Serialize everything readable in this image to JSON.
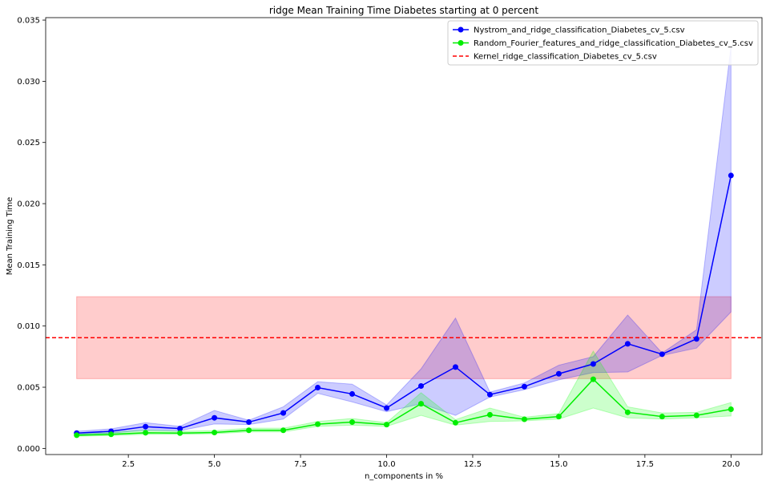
{
  "chart_data": {
    "type": "line",
    "title": "ridge Mean Training Time Diabetes starting at 0 percent",
    "xlabel": "n_components in %",
    "ylabel": "Mean Training Time",
    "xlim": [
      0.1,
      20.9
    ],
    "ylim": [
      -0.0005,
      0.0352
    ],
    "xticks": [
      2.5,
      5.0,
      7.5,
      10.0,
      12.5,
      15.0,
      17.5,
      20.0
    ],
    "xtick_labels": [
      "2.5",
      "5.0",
      "7.5",
      "10.0",
      "12.5",
      "15.0",
      "17.5",
      "20.0"
    ],
    "yticks": [
      0.0,
      0.005,
      0.01,
      0.015,
      0.02,
      0.025,
      0.03,
      0.035
    ],
    "ytick_labels": [
      "0.000",
      "0.005",
      "0.010",
      "0.015",
      "0.020",
      "0.025",
      "0.030",
      "0.035"
    ],
    "grid": false,
    "legend_position": "top-right",
    "x": [
      1,
      2,
      3,
      4,
      5,
      6,
      7,
      8,
      9,
      10,
      11,
      12,
      13,
      14,
      15,
      16,
      17,
      18,
      19,
      20
    ],
    "series": [
      {
        "name": "Nystrom_and_ridge_classification_Diabetes_cv_5.csv",
        "color": "#0000ff",
        "band_color": "#0000ff",
        "values": [
          0.00125,
          0.0014,
          0.00178,
          0.00162,
          0.0025,
          0.00215,
          0.0029,
          0.00497,
          0.00445,
          0.0033,
          0.0051,
          0.00665,
          0.0044,
          0.00505,
          0.0061,
          0.0069,
          0.00855,
          0.0077,
          0.00895,
          0.0223
        ],
        "lower": [
          0.00115,
          0.00125,
          0.0015,
          0.00145,
          0.002,
          0.00195,
          0.0024,
          0.0045,
          0.0038,
          0.003,
          0.00365,
          0.0027,
          0.0042,
          0.0048,
          0.0056,
          0.0062,
          0.00625,
          0.0076,
          0.0082,
          0.01115
        ],
        "upper": [
          0.0014,
          0.0016,
          0.0021,
          0.0018,
          0.0031,
          0.0023,
          0.0034,
          0.00545,
          0.00525,
          0.00355,
          0.0065,
          0.01065,
          0.0046,
          0.00535,
          0.0068,
          0.0075,
          0.0109,
          0.0078,
          0.0097,
          0.03285
        ]
      },
      {
        "name": "Random_Fourier_features_and_ridge_classification_Diabetes_cv_5.csv",
        "color": "#00ee00",
        "band_color": "#00ff00",
        "values": [
          0.00108,
          0.00115,
          0.00128,
          0.00125,
          0.0013,
          0.00148,
          0.00148,
          0.00198,
          0.00215,
          0.00195,
          0.00365,
          0.0021,
          0.00275,
          0.00238,
          0.0026,
          0.00565,
          0.00295,
          0.0026,
          0.0027,
          0.0032
        ],
        "lower": [
          0.001,
          0.00105,
          0.00115,
          0.00115,
          0.0012,
          0.00135,
          0.00135,
          0.0018,
          0.0019,
          0.0018,
          0.0027,
          0.0019,
          0.0022,
          0.00225,
          0.0024,
          0.0033,
          0.0025,
          0.0024,
          0.0025,
          0.00265
        ],
        "upper": [
          0.0012,
          0.0013,
          0.0015,
          0.0014,
          0.00145,
          0.00165,
          0.00165,
          0.0022,
          0.00245,
          0.0021,
          0.00455,
          0.00235,
          0.0033,
          0.00255,
          0.00285,
          0.00795,
          0.0034,
          0.0029,
          0.00295,
          0.00375
        ]
      },
      {
        "name": "Kernel_ridge_classification_Diabetes_cv_5.csv",
        "color": "#ff0000",
        "band_color": "#ff0000",
        "type": "hline",
        "value": 0.00905,
        "band_lower": 0.0057,
        "band_upper": 0.0124,
        "band_x": [
          1,
          20
        ]
      }
    ]
  }
}
